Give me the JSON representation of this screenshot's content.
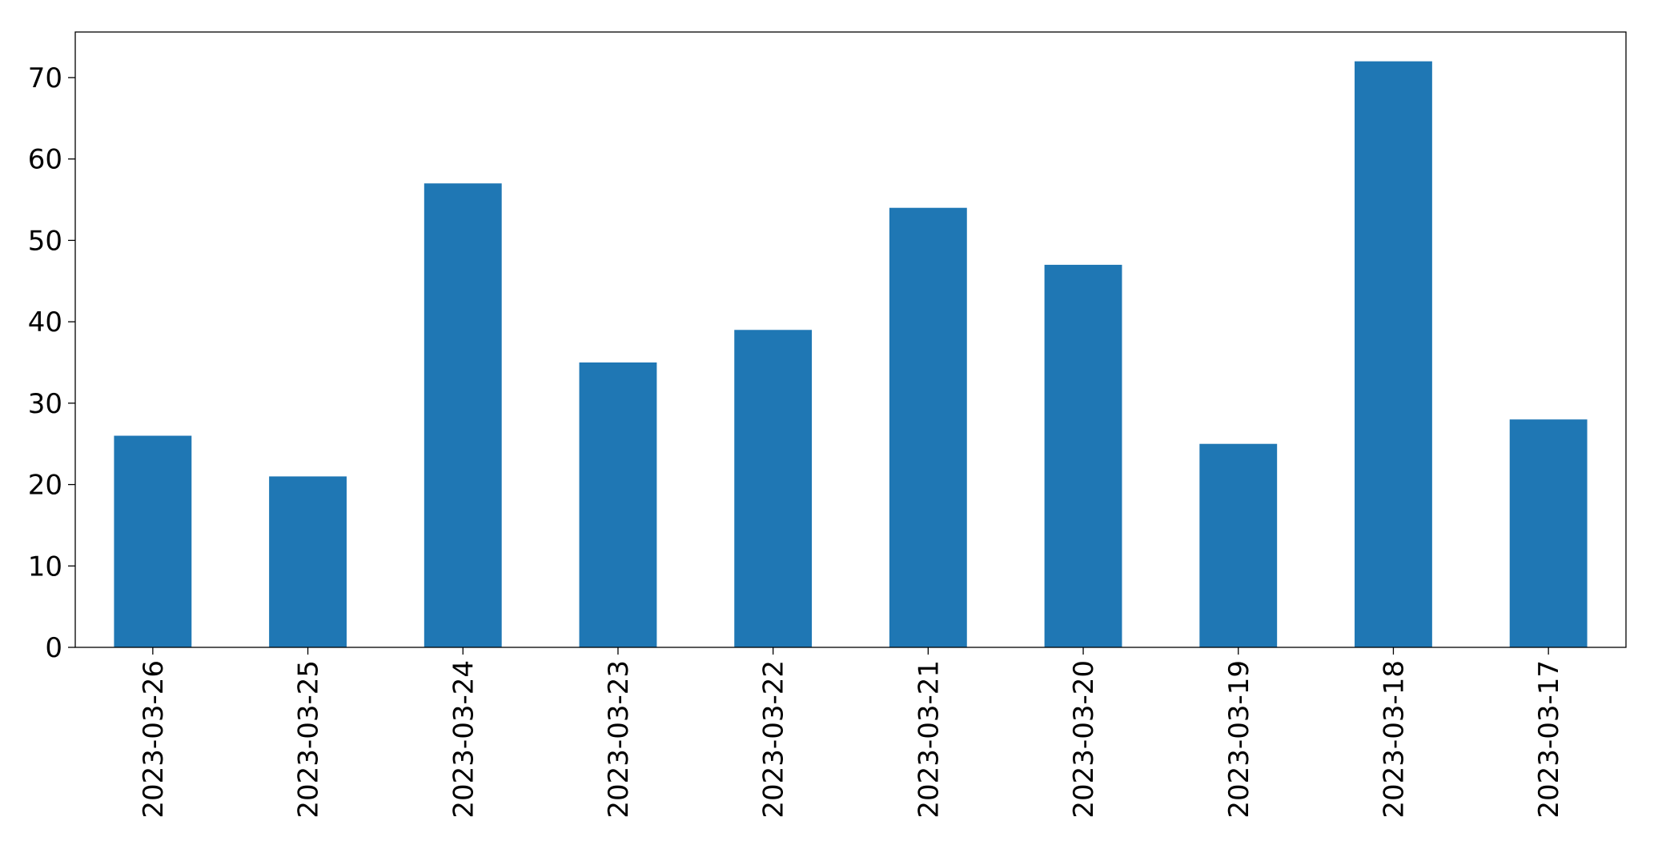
{
  "chart_data": {
    "type": "bar",
    "categories": [
      "2023-03-26",
      "2023-03-25",
      "2023-03-24",
      "2023-03-23",
      "2023-03-22",
      "2023-03-21",
      "2023-03-20",
      "2023-03-19",
      "2023-03-18",
      "2023-03-17"
    ],
    "values": [
      26,
      21,
      57,
      35,
      39,
      54,
      47,
      25,
      72,
      28
    ],
    "color": "#1f77b4",
    "ylim": [
      0,
      75.6
    ],
    "yticks": [
      0,
      10,
      20,
      30,
      40,
      50,
      60,
      70
    ],
    "grid": false
  }
}
